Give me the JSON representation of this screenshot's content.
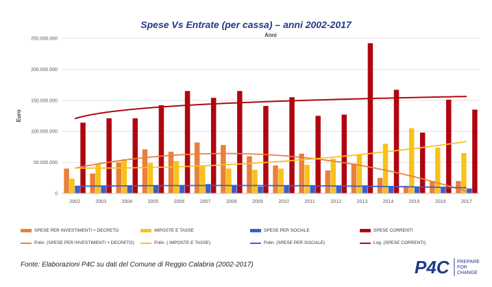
{
  "chart_data": {
    "type": "bar",
    "title": "Spese Vs Entrate (per cassa) – anni 2002-2017",
    "xlabel": "Anni",
    "ylabel": "Euro",
    "ylim": [
      0,
      250000000
    ],
    "yticks": [
      "0",
      "50.000.000",
      "100.000.000",
      "150.000.000",
      "200.000.000",
      "250.000.000"
    ],
    "ytick_values": [
      0,
      50000000,
      100000000,
      150000000,
      200000000,
      250000000
    ],
    "categories": [
      "2002",
      "2003",
      "2004",
      "2005",
      "2006",
      "2007",
      "2008",
      "2009",
      "2010",
      "2011",
      "2012",
      "2013",
      "2014",
      "2015",
      "2016",
      "2017"
    ],
    "grid": true,
    "legend_position": "bottom",
    "series": [
      {
        "name": "SPESE PER INVESTIMENTI + DECRETO",
        "color": "#e9803b",
        "values": [
          40000000,
          32000000,
          50000000,
          71000000,
          67000000,
          82000000,
          78000000,
          60000000,
          45000000,
          64000000,
          37000000,
          48000000,
          25000000,
          12000000,
          20000000,
          20000000
        ]
      },
      {
        "name": "IMPOSTE E TASSE",
        "color": "#f8c21b",
        "values": [
          24000000,
          48000000,
          55000000,
          49000000,
          52000000,
          44000000,
          40000000,
          38000000,
          40000000,
          46000000,
          56000000,
          62000000,
          80000000,
          105000000,
          74000000,
          65000000
        ]
      },
      {
        "name": "SPESE PER SOCIALE",
        "color": "#3a5fcd",
        "values": [
          11000000,
          12000000,
          13000000,
          12000000,
          12000000,
          15000000,
          12000000,
          11000000,
          12000000,
          12000000,
          11000000,
          13000000,
          12000000,
          11000000,
          10000000,
          8000000
        ]
      },
      {
        "name": "SPESE CORRENTI",
        "color": "#b0060f",
        "values": [
          114000000,
          121000000,
          121000000,
          142000000,
          165000000,
          154000000,
          165000000,
          141000000,
          155000000,
          125000000,
          127000000,
          242000000,
          167000000,
          98000000,
          151000000,
          135000000
        ]
      }
    ],
    "trendlines": [
      {
        "name": "Polin. (SPESE PER INVESTIMENTI + DECRETO)",
        "color": "#e9803b",
        "kind": "poly"
      },
      {
        "name": "Polin. ( IMPOSTE E TASSE)",
        "color": "#f8c21b",
        "kind": "poly"
      },
      {
        "name": "Polin. (SPESE PER SOCIALE)",
        "color": "#3a5fcd",
        "kind": "poly"
      },
      {
        "name": "Log. (SPESE CORRENTI)",
        "color": "#b0060f",
        "kind": "log"
      }
    ]
  },
  "source": "Fonte: Elaborazioni P4C su dati del Comune di Reggio Calabria (2002-2017)",
  "logo": {
    "brand": "P4C",
    "tag1": "PREPARE",
    "tag2": "FOR",
    "tag3": "CHANGE",
    "color": "#1f3a8a"
  }
}
